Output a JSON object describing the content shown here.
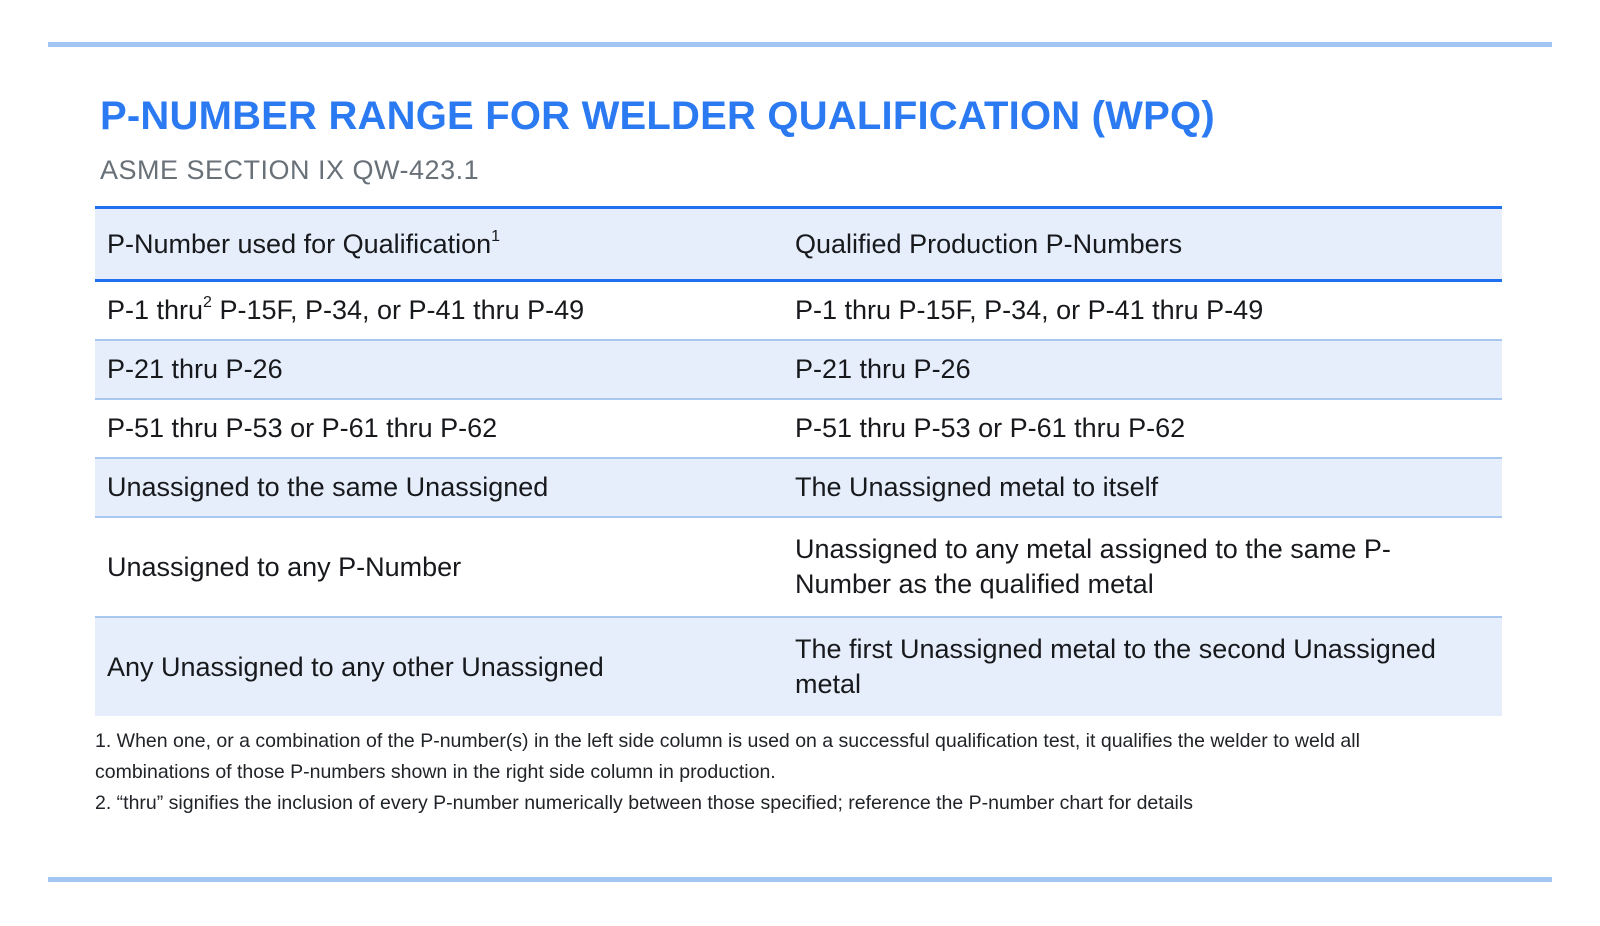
{
  "page": {
    "title": "P-NUMBER RANGE FOR WELDER QUALIFICATION (WPQ)",
    "subtitle": "ASME SECTION IX QW-423.1",
    "colors": {
      "accent_blue": "#2b7af2",
      "header_border_blue": "#1e70f0",
      "row_shade": "#e6eefb",
      "row_divider": "#a9c8ef",
      "page_rule": "#a3c5f3",
      "subtitle_gray": "#687078",
      "text_dark": "#17191c"
    }
  },
  "table": {
    "header": {
      "left": {
        "text": "P-Number used for Qualification",
        "superscript": "1"
      },
      "right": {
        "text": "Qualified Production P-Numbers",
        "superscript": ""
      }
    },
    "rows": [
      {
        "shaded": false,
        "left": {
          "pre": "P-1 thru",
          "sup": "2",
          "post": " P-15F, P-34, or P-41 thru P-49"
        },
        "right": "P-1 thru P-15F, P-34, or P-41 thru P-49"
      },
      {
        "shaded": true,
        "left": {
          "pre": "P-21 thru P-26",
          "sup": "",
          "post": ""
        },
        "right": "P-21 thru P-26"
      },
      {
        "shaded": false,
        "left": {
          "pre": "P-51 thru P-53 or P-61 thru P-62",
          "sup": "",
          "post": ""
        },
        "right": "P-51 thru P-53 or P-61 thru P-62"
      },
      {
        "shaded": true,
        "left": {
          "pre": "Unassigned to the same Unassigned",
          "sup": "",
          "post": ""
        },
        "right": "The Unassigned metal to itself"
      },
      {
        "shaded": false,
        "left": {
          "pre": "Unassigned to any P-Number",
          "sup": "",
          "post": ""
        },
        "right": "Unassigned to any metal assigned to the same P-Number as the qualified metal"
      },
      {
        "shaded": true,
        "left": {
          "pre": "Any Unassigned to any other Unassigned",
          "sup": "",
          "post": ""
        },
        "right": "The first Unassigned metal to the second Unassigned metal"
      }
    ]
  },
  "footnotes": [
    "1. When one, or a combination of the P-number(s) in the left side column is used on a successful qualification test, it qualifies the welder to weld all combinations of those P-numbers shown in the right side column in production.",
    "2. “thru” signifies the inclusion of every P-number numerically between those specified; reference the P-number chart for details"
  ]
}
